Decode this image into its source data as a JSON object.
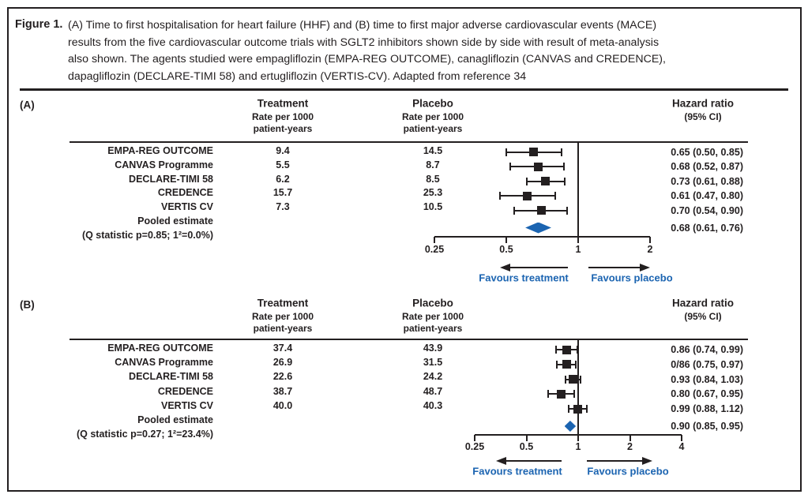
{
  "figure": {
    "label": "Figure 1.",
    "caption_lines": [
      "(A) Time to first hospitalisation for heart failure (HHF) and (B) time to first major adverse cardiovascular events (MACE)",
      "results from the five cardiovascular outcome trials with SGLT2 inhibitors shown side by side with result of meta-analysis",
      "also shown. The agents studied were empagliflozin (EMPA-REG OUTCOME), canagliflozin (CANVAS and CREDENCE),",
      "dapagliflozin (DECLARE-TIMI 58) and ertugliflozin (VERTIS-CV). Adapted from reference 34"
    ]
  },
  "colors": {
    "ink": "#231f20",
    "accent_blue": "#1b64b1"
  },
  "chart_data": [
    {
      "type": "forest",
      "panel_label": "(A)",
      "columns": {
        "treatment_title": "Treatment",
        "treatment_sub1": "Rate per 1000",
        "treatment_sub2": "patient-years",
        "placebo_title": "Placebo",
        "placebo_sub1": "Rate per 1000",
        "placebo_sub2": "patient-years",
        "hazard_title": "Hazard ratio",
        "hazard_sub": "(95% CI)"
      },
      "rows": [
        {
          "trial": "EMPA-REG OUTCOME",
          "treatment_rate": "9.4",
          "placebo_rate": "14.5",
          "hr": 0.65,
          "ci_low": 0.5,
          "ci_high": 0.85,
          "hr_label": "0.65 (0.50, 0.85)"
        },
        {
          "trial": "CANVAS Programme",
          "treatment_rate": "5.5",
          "placebo_rate": "8.7",
          "hr": 0.68,
          "ci_low": 0.52,
          "ci_high": 0.87,
          "hr_label": "0.68 (0.52, 0.87)"
        },
        {
          "trial": "DECLARE-TIMI 58",
          "treatment_rate": "6.2",
          "placebo_rate": "8.5",
          "hr": 0.73,
          "ci_low": 0.61,
          "ci_high": 0.88,
          "hr_label": "0.73 (0.61, 0.88)"
        },
        {
          "trial": "CREDENCE",
          "treatment_rate": "15.7",
          "placebo_rate": "25.3",
          "hr": 0.61,
          "ci_low": 0.47,
          "ci_high": 0.8,
          "hr_label": "0.61 (0.47, 0.80)"
        },
        {
          "trial": "VERTIS CV",
          "treatment_rate": "7.3",
          "placebo_rate": "10.5",
          "hr": 0.7,
          "ci_low": 0.54,
          "ci_high": 0.9,
          "hr_label": "0.70 (0.54, 0.90)"
        }
      ],
      "pooled": {
        "label": "Pooled estimate",
        "stat_label": "(Q statistic p=0.85; 1²=0.0%)",
        "hr": 0.68,
        "ci_low": 0.61,
        "ci_high": 0.76,
        "hr_label": "0.68 (0.61, 0.76)"
      },
      "axis": {
        "scale": "log",
        "tick_labels": [
          "0.25",
          "0.5",
          "1",
          "2"
        ],
        "tick_values": [
          0.25,
          0.5,
          1,
          2
        ],
        "ref_line": 1
      },
      "favours_left": "Favours treatment",
      "favours_right": "Favours placebo"
    },
    {
      "type": "forest",
      "panel_label": "(B)",
      "columns": {
        "treatment_title": "Treatment",
        "treatment_sub1": "Rate per 1000",
        "treatment_sub2": "patient-years",
        "placebo_title": "Placebo",
        "placebo_sub1": "Rate per 1000",
        "placebo_sub2": "patient-years",
        "hazard_title": "Hazard ratio",
        "hazard_sub": "(95% CI)"
      },
      "rows": [
        {
          "trial": "EMPA-REG OUTCOME",
          "treatment_rate": "37.4",
          "placebo_rate": "43.9",
          "hr": 0.86,
          "ci_low": 0.74,
          "ci_high": 0.99,
          "hr_label": "0.86 (0.74, 0.99)"
        },
        {
          "trial": "CANVAS Programme",
          "treatment_rate": "26.9",
          "placebo_rate": "31.5",
          "hr": 0.86,
          "ci_low": 0.75,
          "ci_high": 0.97,
          "hr_label": "0/86 (0.75, 0.97)"
        },
        {
          "trial": "DECLARE-TIMI 58",
          "treatment_rate": "22.6",
          "placebo_rate": "24.2",
          "hr": 0.93,
          "ci_low": 0.84,
          "ci_high": 1.03,
          "hr_label": "0.93 (0.84, 1.03)"
        },
        {
          "trial": "CREDENCE",
          "treatment_rate": "38.7",
          "placebo_rate": "48.7",
          "hr": 0.8,
          "ci_low": 0.67,
          "ci_high": 0.95,
          "hr_label": "0.80 (0.67, 0.95)"
        },
        {
          "trial": "VERTIS CV",
          "treatment_rate": "40.0",
          "placebo_rate": "40.3",
          "hr": 0.99,
          "ci_low": 0.88,
          "ci_high": 1.12,
          "hr_label": "0.99 (0.88, 1.12)"
        }
      ],
      "pooled": {
        "label": "Pooled estimate",
        "stat_label": "(Q statistic p=0.27; 1²=23.4%)",
        "hr": 0.9,
        "ci_low": 0.85,
        "ci_high": 0.95,
        "hr_label": "0.90 (0.85, 0.95)"
      },
      "axis": {
        "scale": "log",
        "tick_labels": [
          "0.25",
          "0.5",
          "1",
          "2",
          "4"
        ],
        "tick_values": [
          0.25,
          0.5,
          1,
          2,
          4
        ],
        "ref_line": 1
      },
      "favours_left": "Favours treatment",
      "favours_right": "Favours placebo"
    }
  ]
}
